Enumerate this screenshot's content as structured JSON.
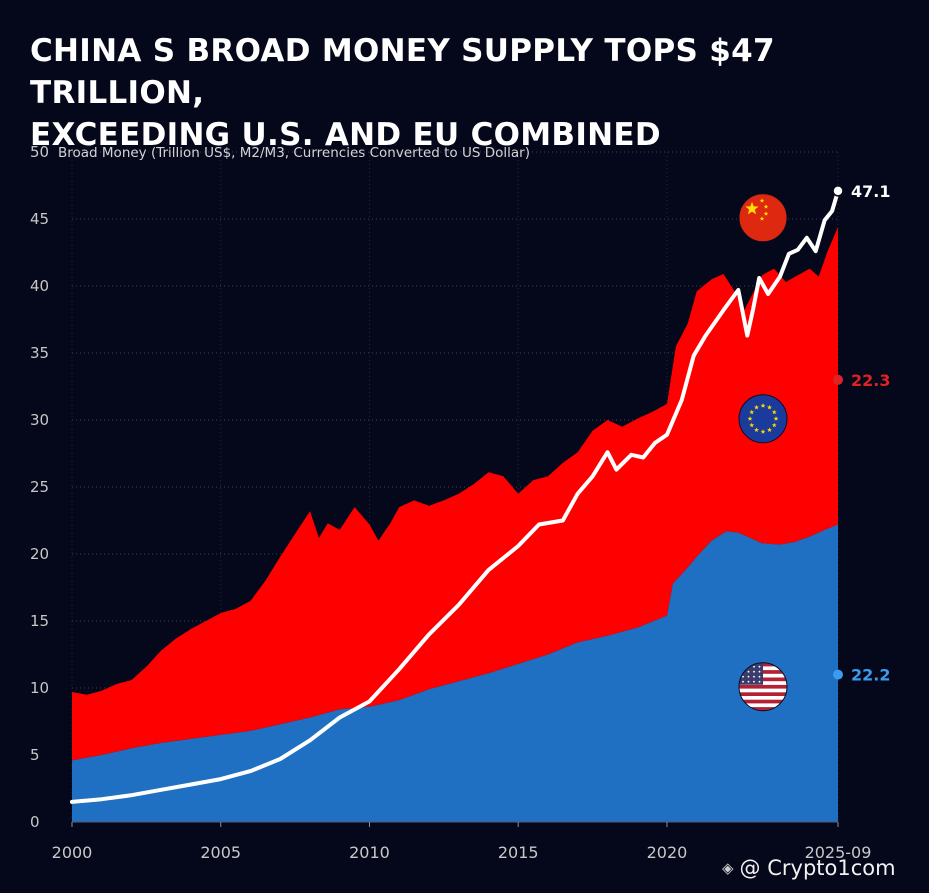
{
  "title": {
    "line1": "CHINA S BROAD MONEY SUPPLY TOPS $47 TRILLION,",
    "line2": "EXCEEDING U.S. AND EU COMBINED"
  },
  "watermark": {
    "text": "@ Crypto1com",
    "logo": "binance-diamond-icon"
  },
  "chart_data": {
    "type": "area",
    "ylabel": "Broad Money (Trillion US$, M2/M3, Currencies Converted to US Dollar)",
    "ylim": [
      0,
      50
    ],
    "xlim": [
      2000,
      2025.75
    ],
    "y_ticks": [
      0,
      5,
      10,
      15,
      20,
      25,
      30,
      35,
      40,
      45,
      50
    ],
    "x_ticks": [
      {
        "value": 2000,
        "label": "2000"
      },
      {
        "value": 2005,
        "label": "2005"
      },
      {
        "value": 2010,
        "label": "2010"
      },
      {
        "value": 2015,
        "label": "2015"
      },
      {
        "value": 2020,
        "label": "2020"
      },
      {
        "value": 2025.75,
        "label": "2025-09"
      }
    ],
    "grid": true,
    "stacking": "stacked",
    "series": [
      {
        "name": "U.S.",
        "kind": "area",
        "color": "#1f6fc2",
        "flag": "usa-flag-icon",
        "end_label": "22.2",
        "end_label_color": "#3a9bef",
        "end_label_y": 11,
        "points": [
          [
            2000,
            4.6
          ],
          [
            2001,
            5.0
          ],
          [
            2002,
            5.5
          ],
          [
            2003,
            5.9
          ],
          [
            2004,
            6.2
          ],
          [
            2005,
            6.5
          ],
          [
            2006,
            6.8
          ],
          [
            2007,
            7.3
          ],
          [
            2008,
            7.8
          ],
          [
            2009,
            8.4
          ],
          [
            2010,
            8.6
          ],
          [
            2011,
            9.1
          ],
          [
            2012,
            9.9
          ],
          [
            2013,
            10.5
          ],
          [
            2014,
            11.1
          ],
          [
            2015,
            11.8
          ],
          [
            2016,
            12.5
          ],
          [
            2017,
            13.4
          ],
          [
            2018,
            13.9
          ],
          [
            2019,
            14.5
          ],
          [
            2020.0,
            15.4
          ],
          [
            2020.2,
            17.8
          ],
          [
            2020.7,
            19.0
          ],
          [
            2021.0,
            19.8
          ],
          [
            2021.5,
            21.0
          ],
          [
            2022.0,
            21.7
          ],
          [
            2022.4,
            21.6
          ],
          [
            2022.8,
            21.2
          ],
          [
            2023.2,
            20.8
          ],
          [
            2023.8,
            20.7
          ],
          [
            2024.3,
            20.9
          ],
          [
            2024.8,
            21.3
          ],
          [
            2025.3,
            21.8
          ],
          [
            2025.75,
            22.2
          ]
        ]
      },
      {
        "name": "EU",
        "kind": "area",
        "color": "#ff0000",
        "flag": "eu-flag-icon",
        "end_label": "22.3",
        "end_label_color": "#e02222",
        "end_label_y": 33,
        "top_points": [
          [
            2000,
            9.7
          ],
          [
            2000.5,
            9.5
          ],
          [
            2001,
            9.8
          ],
          [
            2001.5,
            10.3
          ],
          [
            2002,
            10.6
          ],
          [
            2002.5,
            11.6
          ],
          [
            2003,
            12.8
          ],
          [
            2003.5,
            13.7
          ],
          [
            2004,
            14.4
          ],
          [
            2004.5,
            15.0
          ],
          [
            2005,
            15.6
          ],
          [
            2005.5,
            15.9
          ],
          [
            2006,
            16.5
          ],
          [
            2006.5,
            18.0
          ],
          [
            2007,
            19.8
          ],
          [
            2007.5,
            21.5
          ],
          [
            2008,
            23.2
          ],
          [
            2008.3,
            21.2
          ],
          [
            2008.6,
            22.3
          ],
          [
            2009,
            21.8
          ],
          [
            2009.5,
            23.5
          ],
          [
            2010,
            22.2
          ],
          [
            2010.3,
            21.0
          ],
          [
            2010.7,
            22.3
          ],
          [
            2011,
            23.5
          ],
          [
            2011.5,
            24.0
          ],
          [
            2012,
            23.6
          ],
          [
            2012.5,
            24.0
          ],
          [
            2013,
            24.5
          ],
          [
            2013.5,
            25.2
          ],
          [
            2014,
            26.1
          ],
          [
            2014.5,
            25.8
          ],
          [
            2015,
            24.5
          ],
          [
            2015.5,
            25.5
          ],
          [
            2016,
            25.8
          ],
          [
            2016.5,
            26.8
          ],
          [
            2017,
            27.6
          ],
          [
            2017.5,
            29.2
          ],
          [
            2018,
            30.0
          ],
          [
            2018.5,
            29.5
          ],
          [
            2019,
            30.1
          ],
          [
            2019.5,
            30.6
          ],
          [
            2020.0,
            31.2
          ],
          [
            2020.3,
            35.5
          ],
          [
            2020.7,
            37.2
          ],
          [
            2021.0,
            39.6
          ],
          [
            2021.5,
            40.5
          ],
          [
            2021.9,
            40.9
          ],
          [
            2022.3,
            39.5
          ],
          [
            2022.6,
            38.2
          ],
          [
            2022.9,
            39.5
          ],
          [
            2023.2,
            40.8
          ],
          [
            2023.6,
            41.3
          ],
          [
            2024.0,
            40.3
          ],
          [
            2024.4,
            40.8
          ],
          [
            2024.8,
            41.3
          ],
          [
            2025.1,
            40.7
          ],
          [
            2025.4,
            42.6
          ],
          [
            2025.75,
            44.4
          ]
        ]
      },
      {
        "name": "China",
        "kind": "line",
        "color": "#ffffff",
        "flag": "china-flag-icon",
        "end_label": "47.1",
        "end_label_color": "#ffffff",
        "end_label_y": 47.1,
        "points": [
          [
            2000,
            1.5
          ],
          [
            2001,
            1.7
          ],
          [
            2002,
            2.0
          ],
          [
            2003,
            2.4
          ],
          [
            2004,
            2.8
          ],
          [
            2005,
            3.2
          ],
          [
            2006,
            3.8
          ],
          [
            2007,
            4.7
          ],
          [
            2008,
            6.1
          ],
          [
            2009,
            7.8
          ],
          [
            2010,
            9.0
          ],
          [
            2011,
            11.4
          ],
          [
            2012,
            14.0
          ],
          [
            2013,
            16.2
          ],
          [
            2014,
            18.8
          ],
          [
            2015,
            20.6
          ],
          [
            2015.7,
            22.2
          ],
          [
            2016.5,
            22.5
          ],
          [
            2017,
            24.5
          ],
          [
            2017.5,
            25.8
          ],
          [
            2018,
            27.6
          ],
          [
            2018.3,
            26.3
          ],
          [
            2018.8,
            27.4
          ],
          [
            2019.2,
            27.2
          ],
          [
            2019.6,
            28.3
          ],
          [
            2020.0,
            28.9
          ],
          [
            2020.5,
            31.5
          ],
          [
            2020.9,
            34.8
          ],
          [
            2021.3,
            36.3
          ],
          [
            2021.9,
            38.2
          ],
          [
            2022.1,
            38.8
          ],
          [
            2022.4,
            39.7
          ],
          [
            2022.7,
            36.3
          ],
          [
            2022.9,
            38.3
          ],
          [
            2023.1,
            40.6
          ],
          [
            2023.4,
            39.4
          ],
          [
            2023.8,
            40.7
          ],
          [
            2024.1,
            42.4
          ],
          [
            2024.4,
            42.7
          ],
          [
            2024.7,
            43.6
          ],
          [
            2025.0,
            42.6
          ],
          [
            2025.3,
            44.9
          ],
          [
            2025.55,
            45.6
          ],
          [
            2025.75,
            47.1
          ]
        ]
      }
    ],
    "flags": [
      {
        "name": "china-flag-icon",
        "y": 45.1
      },
      {
        "name": "eu-flag-icon",
        "y": 30.1
      },
      {
        "name": "usa-flag-icon",
        "y": 10.1
      }
    ]
  }
}
